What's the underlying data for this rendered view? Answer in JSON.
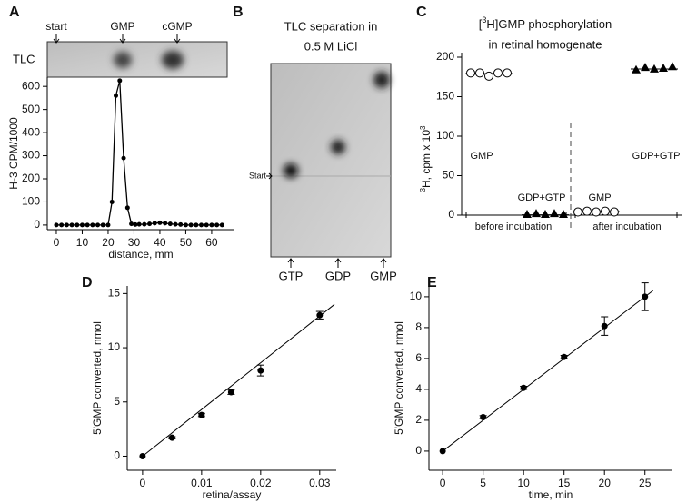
{
  "chart_data": [
    {
      "panel_label": "A",
      "type": "line",
      "image_label": "TLC",
      "image_annotations": [
        "start",
        "GMP",
        "cGMP"
      ],
      "x": [
        0,
        2,
        4,
        6,
        8,
        10,
        12,
        14,
        16,
        18,
        20,
        21.5,
        23,
        24.5,
        26,
        27.5,
        29,
        30.5,
        32,
        34,
        36,
        38,
        40,
        42,
        44,
        46,
        48,
        50,
        52,
        54,
        56,
        58,
        60,
        62,
        64
      ],
      "values": [
        0,
        0,
        0,
        0,
        0,
        0,
        0,
        0,
        0,
        0,
        0,
        100,
        560,
        625,
        290,
        75,
        5,
        2,
        3,
        3,
        5,
        8,
        10,
        8,
        5,
        3,
        2,
        0,
        0,
        0,
        0,
        0,
        0,
        0,
        0
      ],
      "color": "#000000",
      "xlim": [
        -3.5,
        68.8
      ],
      "ylim": [
        -20,
        640
      ],
      "xticks": [
        0,
        10,
        20,
        30,
        40,
        50,
        60
      ],
      "yticks": [
        0,
        100,
        200,
        300,
        400,
        500,
        600
      ],
      "xlabel": "distance, mm",
      "ylabel": "H-3 CPM/1000"
    },
    {
      "panel_label": "B",
      "type": "image",
      "title": [
        "TLC separation in",
        "0.5 M LiCl"
      ],
      "start_label": "Start",
      "lanes": [
        "GTP",
        "GDP",
        "GMP"
      ]
    },
    {
      "panel_label": "C",
      "type": "dot",
      "title": [
        "[",
        "3",
        "H]GMP phosphorylation",
        "in retinal homogenate"
      ],
      "ylabel": [
        "3",
        "H,  cpm x 10",
        "3"
      ],
      "categories": [
        "before incubation",
        "after incubation"
      ],
      "series": [
        {
          "name": "GMP",
          "marker": "circle",
          "values": [
            [
              180,
              180,
              176,
              180,
              180
            ],
            [
              4,
              5,
              4,
              5,
              4
            ]
          ]
        },
        {
          "name": "GDP+GTP",
          "marker": "triangle",
          "values": [
            [
              0,
              1,
              0,
              1,
              0
            ],
            [
              183,
              186,
              184,
              185,
              187
            ]
          ]
        }
      ],
      "ylim": [
        0,
        200
      ],
      "yticks": [
        0,
        50,
        100,
        150,
        200
      ]
    },
    {
      "panel_label": "D",
      "type": "scatter",
      "x": [
        0,
        0.005,
        0.01,
        0.015,
        0.02,
        0.03
      ],
      "values": [
        0,
        1.7,
        3.8,
        5.9,
        7.9,
        13.0
      ],
      "errors": [
        0,
        0.1,
        0.15,
        0.2,
        0.5,
        0.35
      ],
      "fit": {
        "x": [
          0,
          0.0325
        ],
        "values": [
          0,
          14
        ]
      },
      "xlim": [
        -0.0026,
        0.0328
      ],
      "ylim": [
        -1.3,
        15.7
      ],
      "xticks": [
        0,
        0.01,
        0.02,
        0.03
      ],
      "yticks": [
        0,
        5,
        10,
        15
      ],
      "xlabel": "retina/assay",
      "ylabel": "5'GMP converted, nmol"
    },
    {
      "panel_label": "E",
      "type": "scatter",
      "x": [
        0,
        5,
        10,
        15,
        20,
        25
      ],
      "values": [
        0,
        2.2,
        4.1,
        6.1,
        8.1,
        10.0
      ],
      "errors": [
        0,
        0.1,
        0.1,
        0.1,
        0.6,
        0.9
      ],
      "fit": {
        "x": [
          0,
          26
        ],
        "values": [
          0,
          10.4
        ]
      },
      "xlim": [
        -1.7,
        28.4
      ],
      "ylim": [
        -1.24,
        10.7
      ],
      "xticks": [
        0,
        5,
        10,
        15,
        20,
        25
      ],
      "yticks": [
        0,
        2,
        4,
        6,
        8,
        10
      ],
      "xlabel": "time, min",
      "ylabel": "5'GMP converted, nmol"
    }
  ]
}
